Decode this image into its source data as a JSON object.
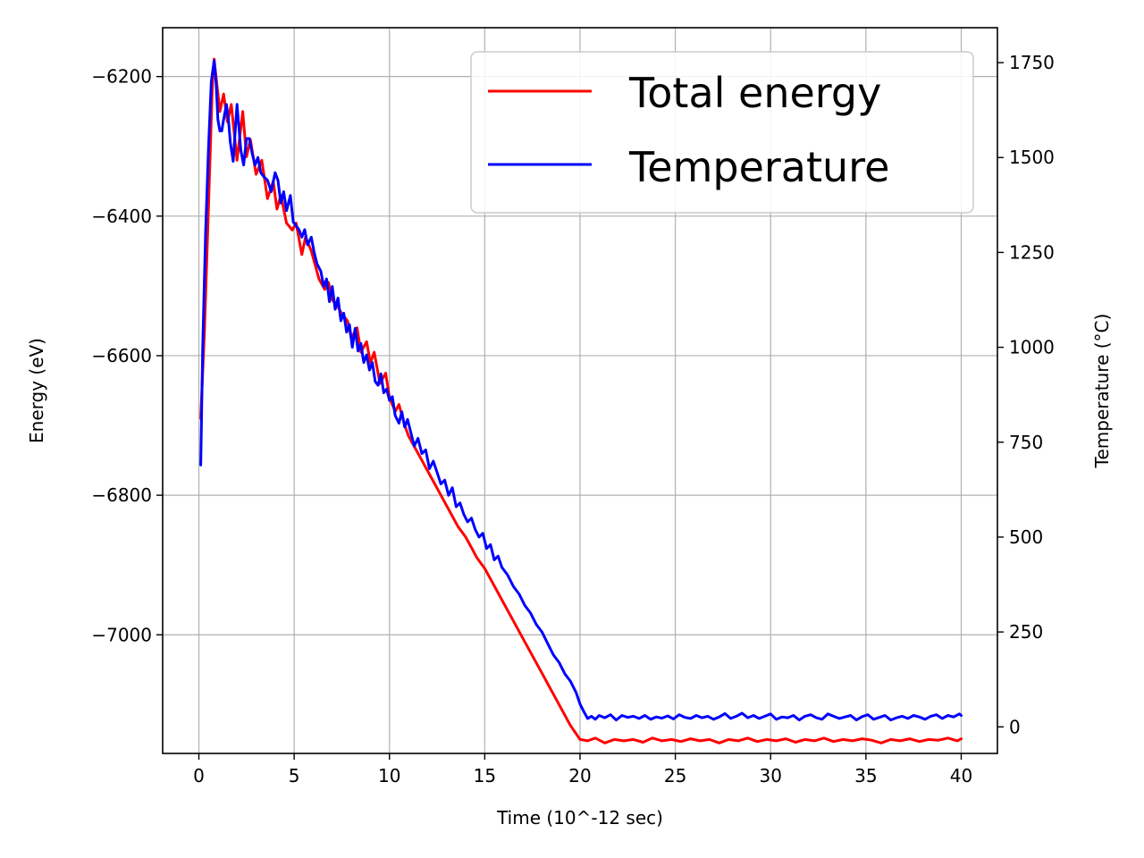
{
  "chart_data": {
    "type": "line",
    "title": "",
    "xlabel": "Time (10^-12 sec)",
    "ylabel_left": "Energy (eV)",
    "ylabel_right": "Temperature ($^\\circ$C)",
    "ylabel_right_display": "Temperature (°C)",
    "xlim": [
      -1.9,
      41.9
    ],
    "ylim_left": [
      -7170,
      -6130
    ],
    "ylim_right": [
      -70,
      1842
    ],
    "x_ticks": [
      0,
      5,
      10,
      15,
      20,
      25,
      30,
      35,
      40
    ],
    "y_left_ticks": [
      -6200,
      -6400,
      -6600,
      -6800,
      -7000
    ],
    "y_left_tick_labels": [
      "−6200",
      "−6400",
      "−6600",
      "−6800",
      "−7000"
    ],
    "y_right_ticks": [
      1750,
      1500,
      1250,
      1000,
      750,
      500,
      250,
      0
    ],
    "grid": true,
    "legend_position": "top-right",
    "series": [
      {
        "name": "Total energy",
        "axis": "left",
        "color": "#ff0000",
        "x": [
          0.1,
          0.3,
          0.5,
          0.7,
          0.8,
          0.9,
          1.1,
          1.3,
          1.5,
          1.7,
          2.0,
          2.3,
          2.5,
          2.7,
          3.0,
          3.3,
          3.6,
          3.9,
          4.1,
          4.3,
          4.6,
          4.9,
          5.1,
          5.4,
          5.6,
          5.9,
          6.1,
          6.3,
          6.6,
          6.8,
          7.0,
          7.3,
          7.5,
          7.8,
          8.0,
          8.3,
          8.5,
          8.8,
          9.0,
          9.2,
          9.5,
          9.8,
          10.0,
          10.3,
          10.5,
          10.8,
          11.0,
          11.3,
          11.6,
          12.0,
          12.3,
          12.6,
          13.0,
          13.3,
          13.6,
          14.0,
          14.3,
          14.6,
          15.0,
          15.3,
          15.6,
          16.0,
          16.5,
          17.0,
          17.5,
          18.0,
          18.5,
          19.0,
          19.5,
          20.0,
          20.4,
          20.8,
          21.3,
          21.8,
          22.3,
          22.8,
          23.3,
          23.8,
          24.3,
          24.8,
          25.3,
          25.8,
          26.3,
          26.8,
          27.3,
          27.8,
          28.3,
          28.8,
          29.3,
          29.8,
          30.3,
          30.8,
          31.3,
          31.8,
          32.3,
          32.8,
          33.3,
          33.8,
          34.3,
          34.8,
          35.3,
          35.8,
          36.3,
          36.8,
          37.3,
          37.8,
          38.3,
          38.8,
          39.3,
          39.8,
          40.0
        ],
        "values": [
          -6690,
          -6560,
          -6390,
          -6220,
          -6175,
          -6200,
          -6250,
          -6225,
          -6265,
          -6240,
          -6320,
          -6250,
          -6315,
          -6290,
          -6340,
          -6320,
          -6375,
          -6350,
          -6390,
          -6370,
          -6410,
          -6420,
          -6410,
          -6455,
          -6430,
          -6450,
          -6470,
          -6490,
          -6505,
          -6495,
          -6520,
          -6530,
          -6540,
          -6550,
          -6575,
          -6560,
          -6595,
          -6580,
          -6610,
          -6595,
          -6640,
          -6625,
          -6660,
          -6680,
          -6670,
          -6700,
          -6715,
          -6730,
          -6745,
          -6765,
          -6780,
          -6795,
          -6815,
          -6830,
          -6845,
          -6860,
          -6875,
          -6890,
          -6905,
          -6920,
          -6935,
          -6955,
          -6980,
          -7005,
          -7030,
          -7055,
          -7080,
          -7105,
          -7130,
          -7150,
          -7152,
          -7148,
          -7155,
          -7150,
          -7152,
          -7150,
          -7154,
          -7148,
          -7152,
          -7150,
          -7153,
          -7149,
          -7152,
          -7150,
          -7155,
          -7150,
          -7152,
          -7148,
          -7153,
          -7150,
          -7152,
          -7149,
          -7154,
          -7150,
          -7152,
          -7148,
          -7153,
          -7150,
          -7152,
          -7149,
          -7151,
          -7155,
          -7150,
          -7152,
          -7149,
          -7153,
          -7150,
          -7151,
          -7148,
          -7152,
          -7149
        ]
      },
      {
        "name": "Temperature",
        "axis": "right",
        "color": "#0000ff",
        "x": [
          0.1,
          0.2,
          0.35,
          0.5,
          0.65,
          0.8,
          0.9,
          1.0,
          1.1,
          1.2,
          1.3,
          1.45,
          1.55,
          1.65,
          1.8,
          2.0,
          2.2,
          2.35,
          2.5,
          2.65,
          2.8,
          2.95,
          3.1,
          3.25,
          3.4,
          3.6,
          3.8,
          4.0,
          4.15,
          4.3,
          4.45,
          4.6,
          4.8,
          4.95,
          5.1,
          5.25,
          5.4,
          5.55,
          5.7,
          5.9,
          6.05,
          6.2,
          6.4,
          6.55,
          6.7,
          6.85,
          7.0,
          7.15,
          7.3,
          7.45,
          7.6,
          7.75,
          7.9,
          8.05,
          8.2,
          8.35,
          8.5,
          8.65,
          8.8,
          8.95,
          9.1,
          9.25,
          9.4,
          9.55,
          9.7,
          9.85,
          10.0,
          10.15,
          10.3,
          10.5,
          10.65,
          10.8,
          10.95,
          11.1,
          11.3,
          11.5,
          11.7,
          11.9,
          12.1,
          12.3,
          12.5,
          12.7,
          12.9,
          13.1,
          13.3,
          13.5,
          13.7,
          13.9,
          14.1,
          14.3,
          14.5,
          14.7,
          14.9,
          15.1,
          15.3,
          15.5,
          15.7,
          15.9,
          16.2,
          16.5,
          16.8,
          17.1,
          17.4,
          17.7,
          18.0,
          18.3,
          18.6,
          18.9,
          19.2,
          19.5,
          19.8,
          20.0,
          20.2,
          20.4,
          20.6,
          20.8,
          21.0,
          21.3,
          21.6,
          21.9,
          22.2,
          22.5,
          22.8,
          23.1,
          23.4,
          23.7,
          24.0,
          24.3,
          24.6,
          24.9,
          25.2,
          25.5,
          25.8,
          26.1,
          26.4,
          26.7,
          27.0,
          27.3,
          27.6,
          27.9,
          28.2,
          28.5,
          28.8,
          29.1,
          29.4,
          29.7,
          30.0,
          30.3,
          30.6,
          30.9,
          31.2,
          31.5,
          31.8,
          32.1,
          32.4,
          32.7,
          33.0,
          33.3,
          33.6,
          33.9,
          34.2,
          34.5,
          34.8,
          35.1,
          35.4,
          35.7,
          36.0,
          36.3,
          36.6,
          36.9,
          37.2,
          37.5,
          37.8,
          38.1,
          38.4,
          38.7,
          39.0,
          39.3,
          39.6,
          39.9,
          40.0
        ],
        "values": [
          690,
          1000,
          1300,
          1520,
          1700,
          1755,
          1700,
          1600,
          1570,
          1570,
          1600,
          1640,
          1600,
          1540,
          1490,
          1640,
          1520,
          1480,
          1550,
          1550,
          1510,
          1480,
          1500,
          1460,
          1450,
          1440,
          1410,
          1460,
          1440,
          1380,
          1410,
          1360,
          1400,
          1330,
          1320,
          1310,
          1290,
          1310,
          1270,
          1290,
          1250,
          1220,
          1200,
          1160,
          1180,
          1120,
          1160,
          1100,
          1130,
          1070,
          1090,
          1040,
          1060,
          1000,
          1050,
          990,
          1010,
          960,
          980,
          940,
          960,
          910,
          900,
          930,
          880,
          890,
          860,
          870,
          820,
          800,
          830,
          790,
          810,
          780,
          740,
          760,
          720,
          730,
          680,
          700,
          670,
          640,
          650,
          610,
          630,
          580,
          590,
          560,
          540,
          550,
          520,
          500,
          510,
          470,
          480,
          440,
          450,
          420,
          400,
          370,
          350,
          320,
          300,
          270,
          250,
          220,
          190,
          170,
          140,
          120,
          90,
          60,
          40,
          22,
          28,
          20,
          30,
          24,
          32,
          18,
          30,
          25,
          28,
          22,
          30,
          20,
          26,
          23,
          29,
          21,
          32,
          25,
          22,
          30,
          24,
          28,
          20,
          26,
          35,
          22,
          28,
          36,
          24,
          30,
          22,
          28,
          34,
          20,
          26,
          24,
          30,
          18,
          28,
          32,
          24,
          20,
          34,
          28,
          22,
          26,
          30,
          18,
          27,
          32,
          20,
          25,
          30,
          18,
          24,
          28,
          22,
          30,
          26,
          20,
          28,
          32,
          22,
          30,
          26,
          34,
          30
        ]
      }
    ]
  }
}
